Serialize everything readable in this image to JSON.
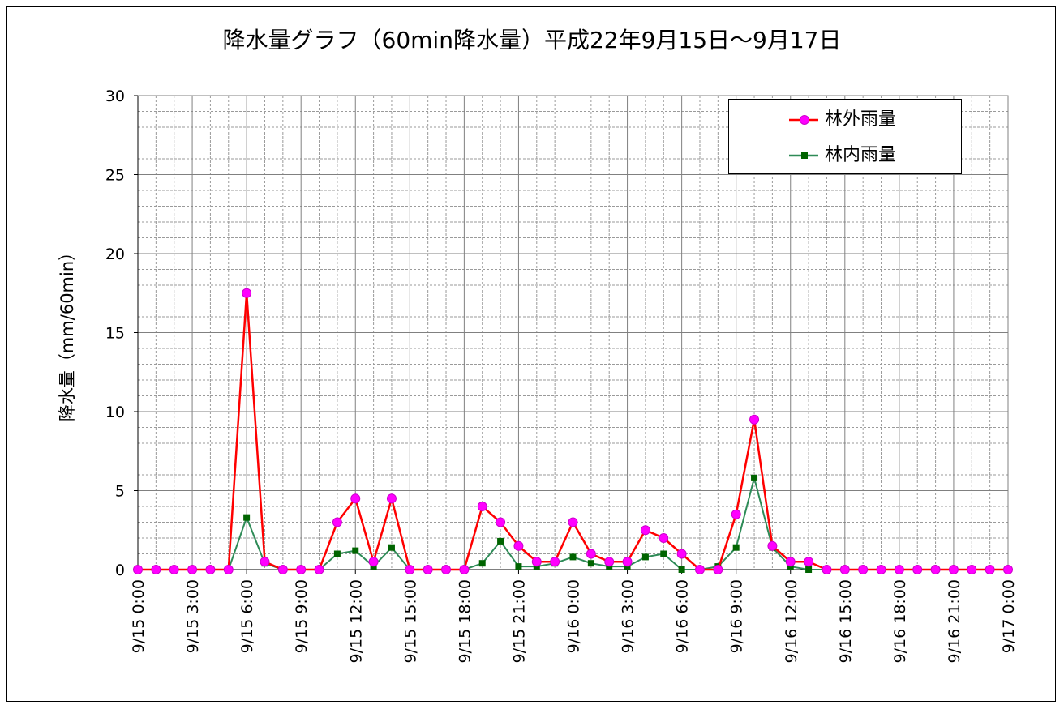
{
  "chart_data": {
    "type": "line",
    "title": "降水量グラフ（60min降水量）平成22年9月15日～9月17日",
    "ylabel": "降水量（mm/60min）",
    "xlabel": "",
    "ylim": [
      0,
      30
    ],
    "yticks": [
      "0",
      "5",
      "10",
      "15",
      "20",
      "25",
      "30"
    ],
    "grid": true,
    "legend_position": "top-right",
    "x_tick_labels": [
      "9/15 0:00",
      "9/15 3:00",
      "9/15 6:00",
      "9/15 9:00",
      "9/15 12:00",
      "9/15 15:00",
      "9/15 18:00",
      "9/15 21:00",
      "9/16 0:00",
      "9/16 3:00",
      "9/16 6:00",
      "9/16 9:00",
      "9/16 12:00",
      "9/16 15:00",
      "9/16 18:00",
      "9/16 21:00",
      "9/17 0:00"
    ],
    "series": [
      {
        "name": "林外雨量",
        "color": "#ff0000",
        "marker": "circle",
        "marker_color": "#ff00ff",
        "values": [
          0,
          0,
          0,
          0,
          0,
          0,
          17.5,
          0.5,
          0,
          0,
          0,
          3.0,
          4.5,
          0.5,
          4.5,
          0,
          0,
          0,
          0,
          4.0,
          3.0,
          1.5,
          0.5,
          0.5,
          3.0,
          1.0,
          0.5,
          0.5,
          2.5,
          2.0,
          1.0,
          0,
          0,
          3.5,
          9.5,
          1.5,
          0.5,
          0.5,
          0,
          0,
          0,
          0,
          0,
          0,
          0,
          0,
          0,
          0,
          0
        ]
      },
      {
        "name": "林内雨量",
        "color": "#2e8b57",
        "marker": "square",
        "marker_color": "#006400",
        "values": [
          0,
          0,
          0,
          0,
          0,
          0,
          3.3,
          0.4,
          0,
          0,
          0,
          1.0,
          1.2,
          0.2,
          1.4,
          0,
          0,
          0,
          0,
          0.4,
          1.8,
          0.2,
          0.2,
          0.4,
          0.8,
          0.4,
          0.2,
          0.2,
          0.8,
          1.0,
          0,
          0,
          0.2,
          1.4,
          5.8,
          1.4,
          0.2,
          0,
          0,
          0,
          0,
          0,
          0,
          0,
          0,
          0,
          0,
          0,
          0
        ]
      }
    ]
  }
}
